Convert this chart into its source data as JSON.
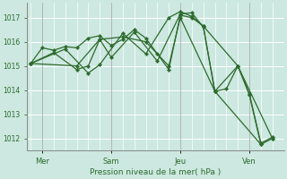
{
  "title": "",
  "xlabel": "Pression niveau de la mer( hPa )",
  "background_color": "#cce8e0",
  "grid_color": "#ffffff",
  "line_color": "#2d6b2d",
  "separator_color": "#aaaaaa",
  "ylim": [
    1011.5,
    1017.6
  ],
  "yticks": [
    1012,
    1013,
    1014,
    1015,
    1016,
    1017
  ],
  "xlim": [
    -0.15,
    11.0
  ],
  "day_positions": [
    0.5,
    3.5,
    6.5,
    9.5
  ],
  "day_labels": [
    "Mer",
    "Sam",
    "Jeu",
    "Ven"
  ],
  "vgrid_positions": [
    0.0,
    0.5,
    1.0,
    1.5,
    2.0,
    2.5,
    3.0,
    3.5,
    4.0,
    4.5,
    5.0,
    5.5,
    6.0,
    6.5,
    7.0,
    7.5,
    8.0,
    8.5,
    9.0,
    9.5,
    10.0,
    10.5,
    11.0
  ],
  "series": [
    [
      0.0,
      1015.1,
      0.5,
      1015.75,
      1.0,
      1015.65,
      1.5,
      1015.8,
      2.0,
      1015.75,
      2.5,
      1016.15,
      3.0,
      1016.25,
      3.5,
      1015.85,
      4.0,
      1016.1,
      4.5,
      1016.5,
      5.0,
      1016.15,
      5.5,
      1015.5,
      6.0,
      1014.85,
      6.5,
      1017.1,
      7.0,
      1017.0,
      7.5,
      1016.65,
      8.0,
      1013.95,
      8.5,
      1014.05,
      9.0,
      1015.0,
      9.5,
      1013.8,
      10.0,
      1011.75,
      10.5,
      1012.0
    ],
    [
      0.0,
      1015.1,
      1.0,
      1015.55,
      2.0,
      1014.85,
      2.5,
      1015.0,
      3.0,
      1016.1,
      3.5,
      1015.35,
      4.5,
      1016.4,
      5.5,
      1015.2,
      6.5,
      1017.15,
      7.0,
      1017.2,
      7.5,
      1016.6,
      8.0,
      1013.95,
      9.0,
      1015.0,
      9.5,
      1013.85,
      10.0,
      1011.8,
      10.5,
      1012.05
    ],
    [
      0.0,
      1015.1,
      2.0,
      1015.0,
      3.0,
      1016.1,
      4.0,
      1016.2,
      5.0,
      1016.0,
      6.0,
      1015.0,
      6.5,
      1017.0,
      8.0,
      1013.95,
      10.0,
      1011.75
    ],
    [
      0.0,
      1015.1,
      1.5,
      1015.7,
      2.5,
      1014.7,
      3.0,
      1015.05,
      4.0,
      1016.35,
      5.0,
      1015.5,
      6.0,
      1017.0,
      6.5,
      1017.25,
      7.0,
      1017.05,
      7.5,
      1016.65,
      9.0,
      1015.0,
      10.5,
      1012.0
    ]
  ]
}
